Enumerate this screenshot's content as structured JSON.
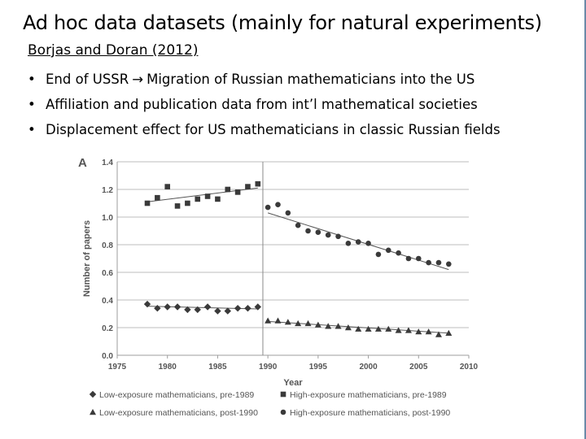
{
  "slide": {
    "title": "Ad hoc data datasets (mainly for natural experiments)",
    "subtitle": "Borjas and Doran (2012)",
    "bullets": [
      {
        "before": "End of USSR",
        "arrow": "→",
        "after": "Migration of Russian mathematicians into the US"
      },
      {
        "text": "Affiliation and publication data from int’l mathematical societies"
      },
      {
        "text": "Displacement effect for US mathematicians in classic Russian fields"
      }
    ]
  },
  "chart_data": {
    "type": "scatter",
    "panel_label": "A",
    "xlabel": "Year",
    "ylabel": "Number of papers",
    "xlim": [
      1975,
      2010
    ],
    "ylim": [
      0.0,
      1.4
    ],
    "xticks": [
      "1975",
      "1980",
      "1985",
      "1990",
      "1995",
      "2000",
      "2005",
      "2010"
    ],
    "yticks": [
      "0.0",
      "0.2",
      "0.4",
      "0.6",
      "0.8",
      "1.0",
      "1.2",
      "1.4"
    ],
    "grid": true,
    "vline_x": 1989.5,
    "legend_position": "bottom",
    "series": [
      {
        "name": "Low-exposure mathematicians, pre-1989",
        "marker": "diamond",
        "x": [
          1978,
          1979,
          1980,
          1981,
          1982,
          1983,
          1984,
          1985,
          1986,
          1987,
          1988,
          1989
        ],
        "y": [
          0.37,
          0.34,
          0.35,
          0.35,
          0.33,
          0.33,
          0.35,
          0.32,
          0.32,
          0.34,
          0.34,
          0.35
        ],
        "fit": [
          [
            1978,
            0.355
          ],
          [
            1989,
            0.335
          ]
        ]
      },
      {
        "name": "High-exposure mathematicians, pre-1989",
        "marker": "square",
        "x": [
          1978,
          1979,
          1980,
          1981,
          1982,
          1983,
          1984,
          1985,
          1986,
          1987,
          1988,
          1989
        ],
        "y": [
          1.1,
          1.14,
          1.22,
          1.08,
          1.1,
          1.13,
          1.15,
          1.13,
          1.2,
          1.18,
          1.22,
          1.24
        ],
        "fit": [
          [
            1978,
            1.11
          ],
          [
            1989,
            1.21
          ]
        ]
      },
      {
        "name": "Low-exposure mathematicians, post-1990",
        "marker": "triangle",
        "x": [
          1990,
          1991,
          1992,
          1993,
          1994,
          1995,
          1996,
          1997,
          1998,
          1999,
          2000,
          2001,
          2002,
          2003,
          2004,
          2005,
          2006,
          2007,
          2008
        ],
        "y": [
          0.25,
          0.25,
          0.24,
          0.23,
          0.23,
          0.22,
          0.21,
          0.21,
          0.2,
          0.19,
          0.19,
          0.19,
          0.19,
          0.18,
          0.18,
          0.17,
          0.17,
          0.15,
          0.16
        ],
        "fit": [
          [
            1990,
            0.245
          ],
          [
            2008,
            0.16
          ]
        ]
      },
      {
        "name": "High-exposure mathematicians, post-1990",
        "marker": "circle",
        "x": [
          1990,
          1991,
          1992,
          1993,
          1994,
          1995,
          1996,
          1997,
          1998,
          1999,
          2000,
          2001,
          2002,
          2003,
          2004,
          2005,
          2006,
          2007,
          2008
        ],
        "y": [
          1.07,
          1.09,
          1.03,
          0.94,
          0.9,
          0.89,
          0.87,
          0.86,
          0.81,
          0.82,
          0.81,
          0.73,
          0.76,
          0.74,
          0.7,
          0.7,
          0.67,
          0.67,
          0.66
        ],
        "fit": [
          [
            1990,
            1.03
          ],
          [
            2008,
            0.62
          ]
        ]
      }
    ]
  }
}
